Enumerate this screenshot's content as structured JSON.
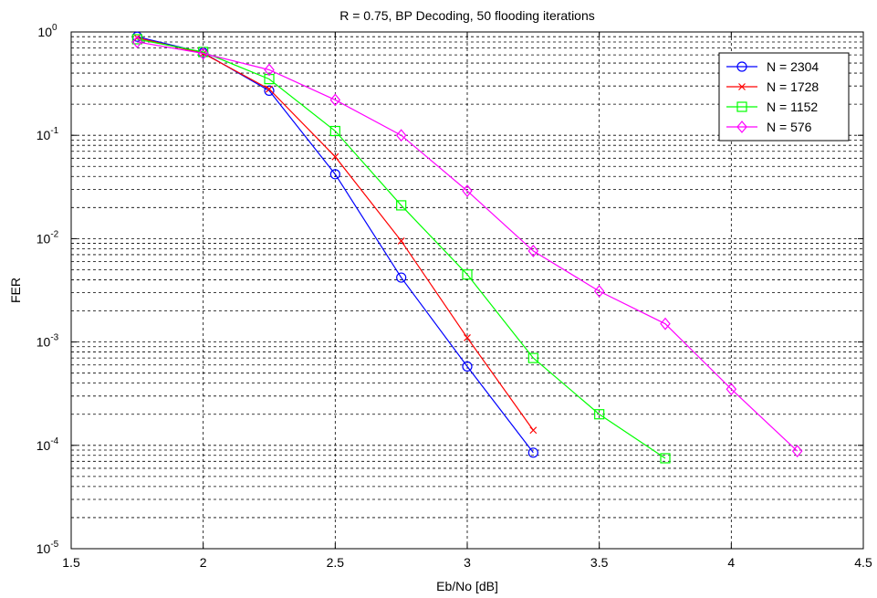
{
  "chart_data": {
    "type": "line",
    "title": "R = 0.75, BP Decoding, 50 flooding iterations",
    "xlabel": "Eb/No [dB]",
    "ylabel": "FER",
    "xlim": [
      1.5,
      4.5
    ],
    "ylim": [
      1e-05,
      1
    ],
    "yscale": "log",
    "grid": true,
    "legend_position": "top-right",
    "x_ticks": [
      "1.5",
      "2",
      "2.5",
      "3",
      "3.5",
      "4",
      "4.5"
    ],
    "y_ticks": [
      {
        "base": "10",
        "exp": "0"
      },
      {
        "base": "10",
        "exp": "-1"
      },
      {
        "base": "10",
        "exp": "-2"
      },
      {
        "base": "10",
        "exp": "-3"
      },
      {
        "base": "10",
        "exp": "-4"
      },
      {
        "base": "10",
        "exp": "-5"
      }
    ],
    "series": [
      {
        "name": "N = 2304",
        "color": "#0000ff",
        "marker": "circle",
        "x": [
          1.75,
          2.0,
          2.25,
          2.5,
          2.75,
          3.0,
          3.25
        ],
        "y": [
          0.9,
          0.63,
          0.27,
          0.042,
          0.0042,
          0.00058,
          8.5e-05
        ]
      },
      {
        "name": "N = 1728",
        "color": "#ff0000",
        "marker": "x",
        "x": [
          1.75,
          2.0,
          2.25,
          2.5,
          2.75,
          3.0,
          3.25
        ],
        "y": [
          0.88,
          0.62,
          0.28,
          0.062,
          0.0095,
          0.0011,
          0.00014
        ]
      },
      {
        "name": "N = 1152",
        "color": "#00ff00",
        "marker": "square",
        "x": [
          1.75,
          2.0,
          2.25,
          2.5,
          2.75,
          3.0,
          3.25,
          3.5,
          3.75
        ],
        "y": [
          0.85,
          0.64,
          0.35,
          0.11,
          0.021,
          0.0045,
          0.0007,
          0.0002,
          7.5e-05
        ]
      },
      {
        "name": "N = 576",
        "color": "#ff00ff",
        "marker": "diamond",
        "x": [
          1.75,
          2.0,
          2.25,
          2.5,
          2.75,
          3.0,
          3.25,
          3.5,
          3.75,
          4.0,
          4.25
        ],
        "y": [
          0.8,
          0.62,
          0.43,
          0.22,
          0.1,
          0.029,
          0.0076,
          0.0031,
          0.0015,
          0.00035,
          8.8e-05
        ]
      }
    ]
  }
}
